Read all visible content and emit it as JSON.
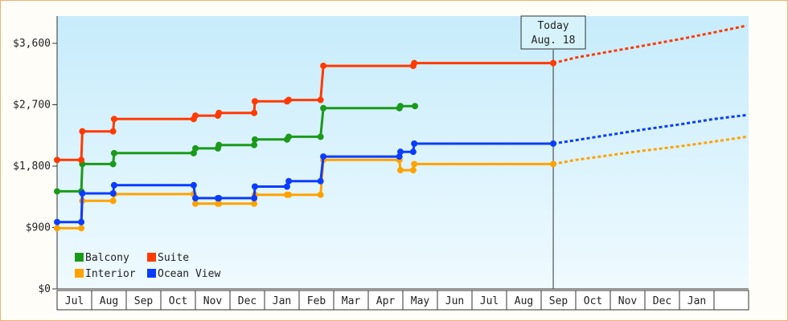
{
  "chart_data": {
    "type": "line",
    "title": "",
    "xlabel": "",
    "ylabel": "",
    "ylim": [
      0,
      4000
    ],
    "y_ticks": [
      "$0",
      "$900",
      "$1,800",
      "$2,700",
      "$3,600"
    ],
    "y_tick_values": [
      0,
      900,
      1800,
      2700,
      3600
    ],
    "x_ticks": [
      "Jul",
      "Aug",
      "Sep",
      "Oct",
      "Nov",
      "Dec",
      "Jan",
      "Feb",
      "Mar",
      "Apr",
      "May",
      "Jun",
      "Jul",
      "Aug",
      "Sep",
      "Oct",
      "Nov",
      "Dec",
      "Jan"
    ],
    "x_range_months": [
      0,
      20
    ],
    "grid": "none",
    "legend_placement": "bottom-left",
    "today_marker": {
      "line1": "Today",
      "line2": "Aug. 18",
      "x": 14.35
    },
    "series": [
      {
        "name": "Balcony",
        "color": "#1a9a1a",
        "points": [
          [
            0.0,
            1430
          ],
          [
            0.7,
            1430
          ],
          [
            0.73,
            1830
          ],
          [
            1.62,
            1830
          ],
          [
            1.65,
            1990
          ],
          [
            3.95,
            1990
          ],
          [
            4.0,
            2060
          ],
          [
            4.65,
            2060
          ],
          [
            4.68,
            2110
          ],
          [
            5.7,
            2110
          ],
          [
            5.72,
            2190
          ],
          [
            6.65,
            2190
          ],
          [
            6.7,
            2230
          ],
          [
            7.62,
            2230
          ],
          [
            7.7,
            2650
          ],
          [
            9.9,
            2650
          ],
          [
            9.93,
            2680
          ],
          [
            10.35,
            2680
          ]
        ]
      },
      {
        "name": "Suite",
        "color": "#ff3a00",
        "points": [
          [
            0.0,
            1890
          ],
          [
            0.7,
            1890
          ],
          [
            0.73,
            2310
          ],
          [
            1.62,
            2310
          ],
          [
            1.65,
            2490
          ],
          [
            3.95,
            2490
          ],
          [
            4.0,
            2540
          ],
          [
            4.65,
            2540
          ],
          [
            4.68,
            2580
          ],
          [
            5.7,
            2580
          ],
          [
            5.72,
            2750
          ],
          [
            6.65,
            2750
          ],
          [
            6.7,
            2770
          ],
          [
            7.62,
            2770
          ],
          [
            7.7,
            3270
          ],
          [
            10.3,
            3270
          ],
          [
            10.33,
            3310
          ],
          [
            14.35,
            3310
          ]
        ],
        "forecast": [
          [
            14.35,
            3310
          ],
          [
            15.0,
            3390
          ],
          [
            16.0,
            3480
          ],
          [
            17.0,
            3570
          ],
          [
            18.0,
            3660
          ],
          [
            19.0,
            3760
          ],
          [
            19.95,
            3860
          ]
        ]
      },
      {
        "name": "Interior",
        "color": "#ffa200",
        "points": [
          [
            0.0,
            890
          ],
          [
            0.7,
            890
          ],
          [
            0.73,
            1290
          ],
          [
            1.62,
            1290
          ],
          [
            1.65,
            1390
          ],
          [
            3.95,
            1390
          ],
          [
            4.0,
            1250
          ],
          [
            4.65,
            1250
          ],
          [
            4.68,
            1250
          ],
          [
            5.7,
            1250
          ],
          [
            5.72,
            1380
          ],
          [
            6.65,
            1380
          ],
          [
            6.7,
            1380
          ],
          [
            7.62,
            1380
          ],
          [
            7.7,
            1890
          ],
          [
            9.9,
            1890
          ],
          [
            9.93,
            1740
          ],
          [
            10.3,
            1740
          ],
          [
            10.33,
            1830
          ],
          [
            14.35,
            1830
          ]
        ],
        "forecast": [
          [
            14.35,
            1830
          ],
          [
            15.0,
            1890
          ],
          [
            16.0,
            1960
          ],
          [
            17.0,
            2030
          ],
          [
            18.0,
            2090
          ],
          [
            19.0,
            2160
          ],
          [
            19.95,
            2230
          ]
        ]
      },
      {
        "name": "Ocean View",
        "color": "#0a3cff",
        "points": [
          [
            0.0,
            980
          ],
          [
            0.7,
            980
          ],
          [
            0.73,
            1400
          ],
          [
            1.62,
            1400
          ],
          [
            1.65,
            1520
          ],
          [
            3.95,
            1520
          ],
          [
            4.0,
            1330
          ],
          [
            4.65,
            1330
          ],
          [
            4.68,
            1330
          ],
          [
            5.7,
            1330
          ],
          [
            5.72,
            1500
          ],
          [
            6.65,
            1500
          ],
          [
            6.7,
            1580
          ],
          [
            7.62,
            1580
          ],
          [
            7.7,
            1940
          ],
          [
            9.9,
            1940
          ],
          [
            9.93,
            2010
          ],
          [
            10.3,
            2010
          ],
          [
            10.33,
            2130
          ],
          [
            14.35,
            2130
          ]
        ],
        "forecast": [
          [
            14.35,
            2130
          ],
          [
            15.0,
            2180
          ],
          [
            16.0,
            2260
          ],
          [
            17.0,
            2340
          ],
          [
            18.0,
            2410
          ],
          [
            19.0,
            2490
          ],
          [
            19.95,
            2550
          ]
        ]
      }
    ]
  }
}
